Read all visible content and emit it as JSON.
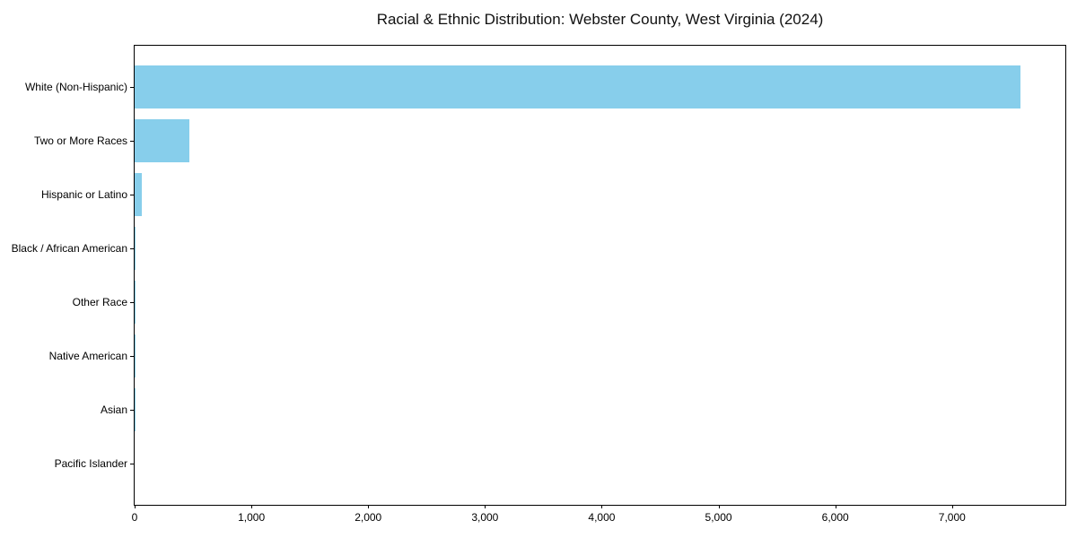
{
  "chart_data": {
    "type": "bar",
    "orientation": "horizontal",
    "title": "Racial & Ethnic Distribution: Webster County, West Virginia (2024)",
    "categories": [
      "White (Non-Hispanic)",
      "Two or More Races",
      "Hispanic or Latino",
      "Black / African American",
      "Other Race",
      "Native American",
      "Asian",
      "Pacific Islander"
    ],
    "values": [
      7582,
      466,
      64,
      10,
      8,
      3,
      2,
      0
    ],
    "bar_color": "#87CEEB",
    "xlabel": "",
    "ylabel": "",
    "xlim": [
      0,
      7970
    ],
    "xticks": [
      0,
      1000,
      2000,
      3000,
      4000,
      5000,
      6000,
      7000
    ],
    "xtick_labels": [
      "0",
      "1,000",
      "2,000",
      "3,000",
      "4,000",
      "5,000",
      "6,000",
      "7,000"
    ],
    "grid": false,
    "legend": null,
    "axes_box": true,
    "background_color": "#ffffff",
    "text_color": "#000000"
  }
}
